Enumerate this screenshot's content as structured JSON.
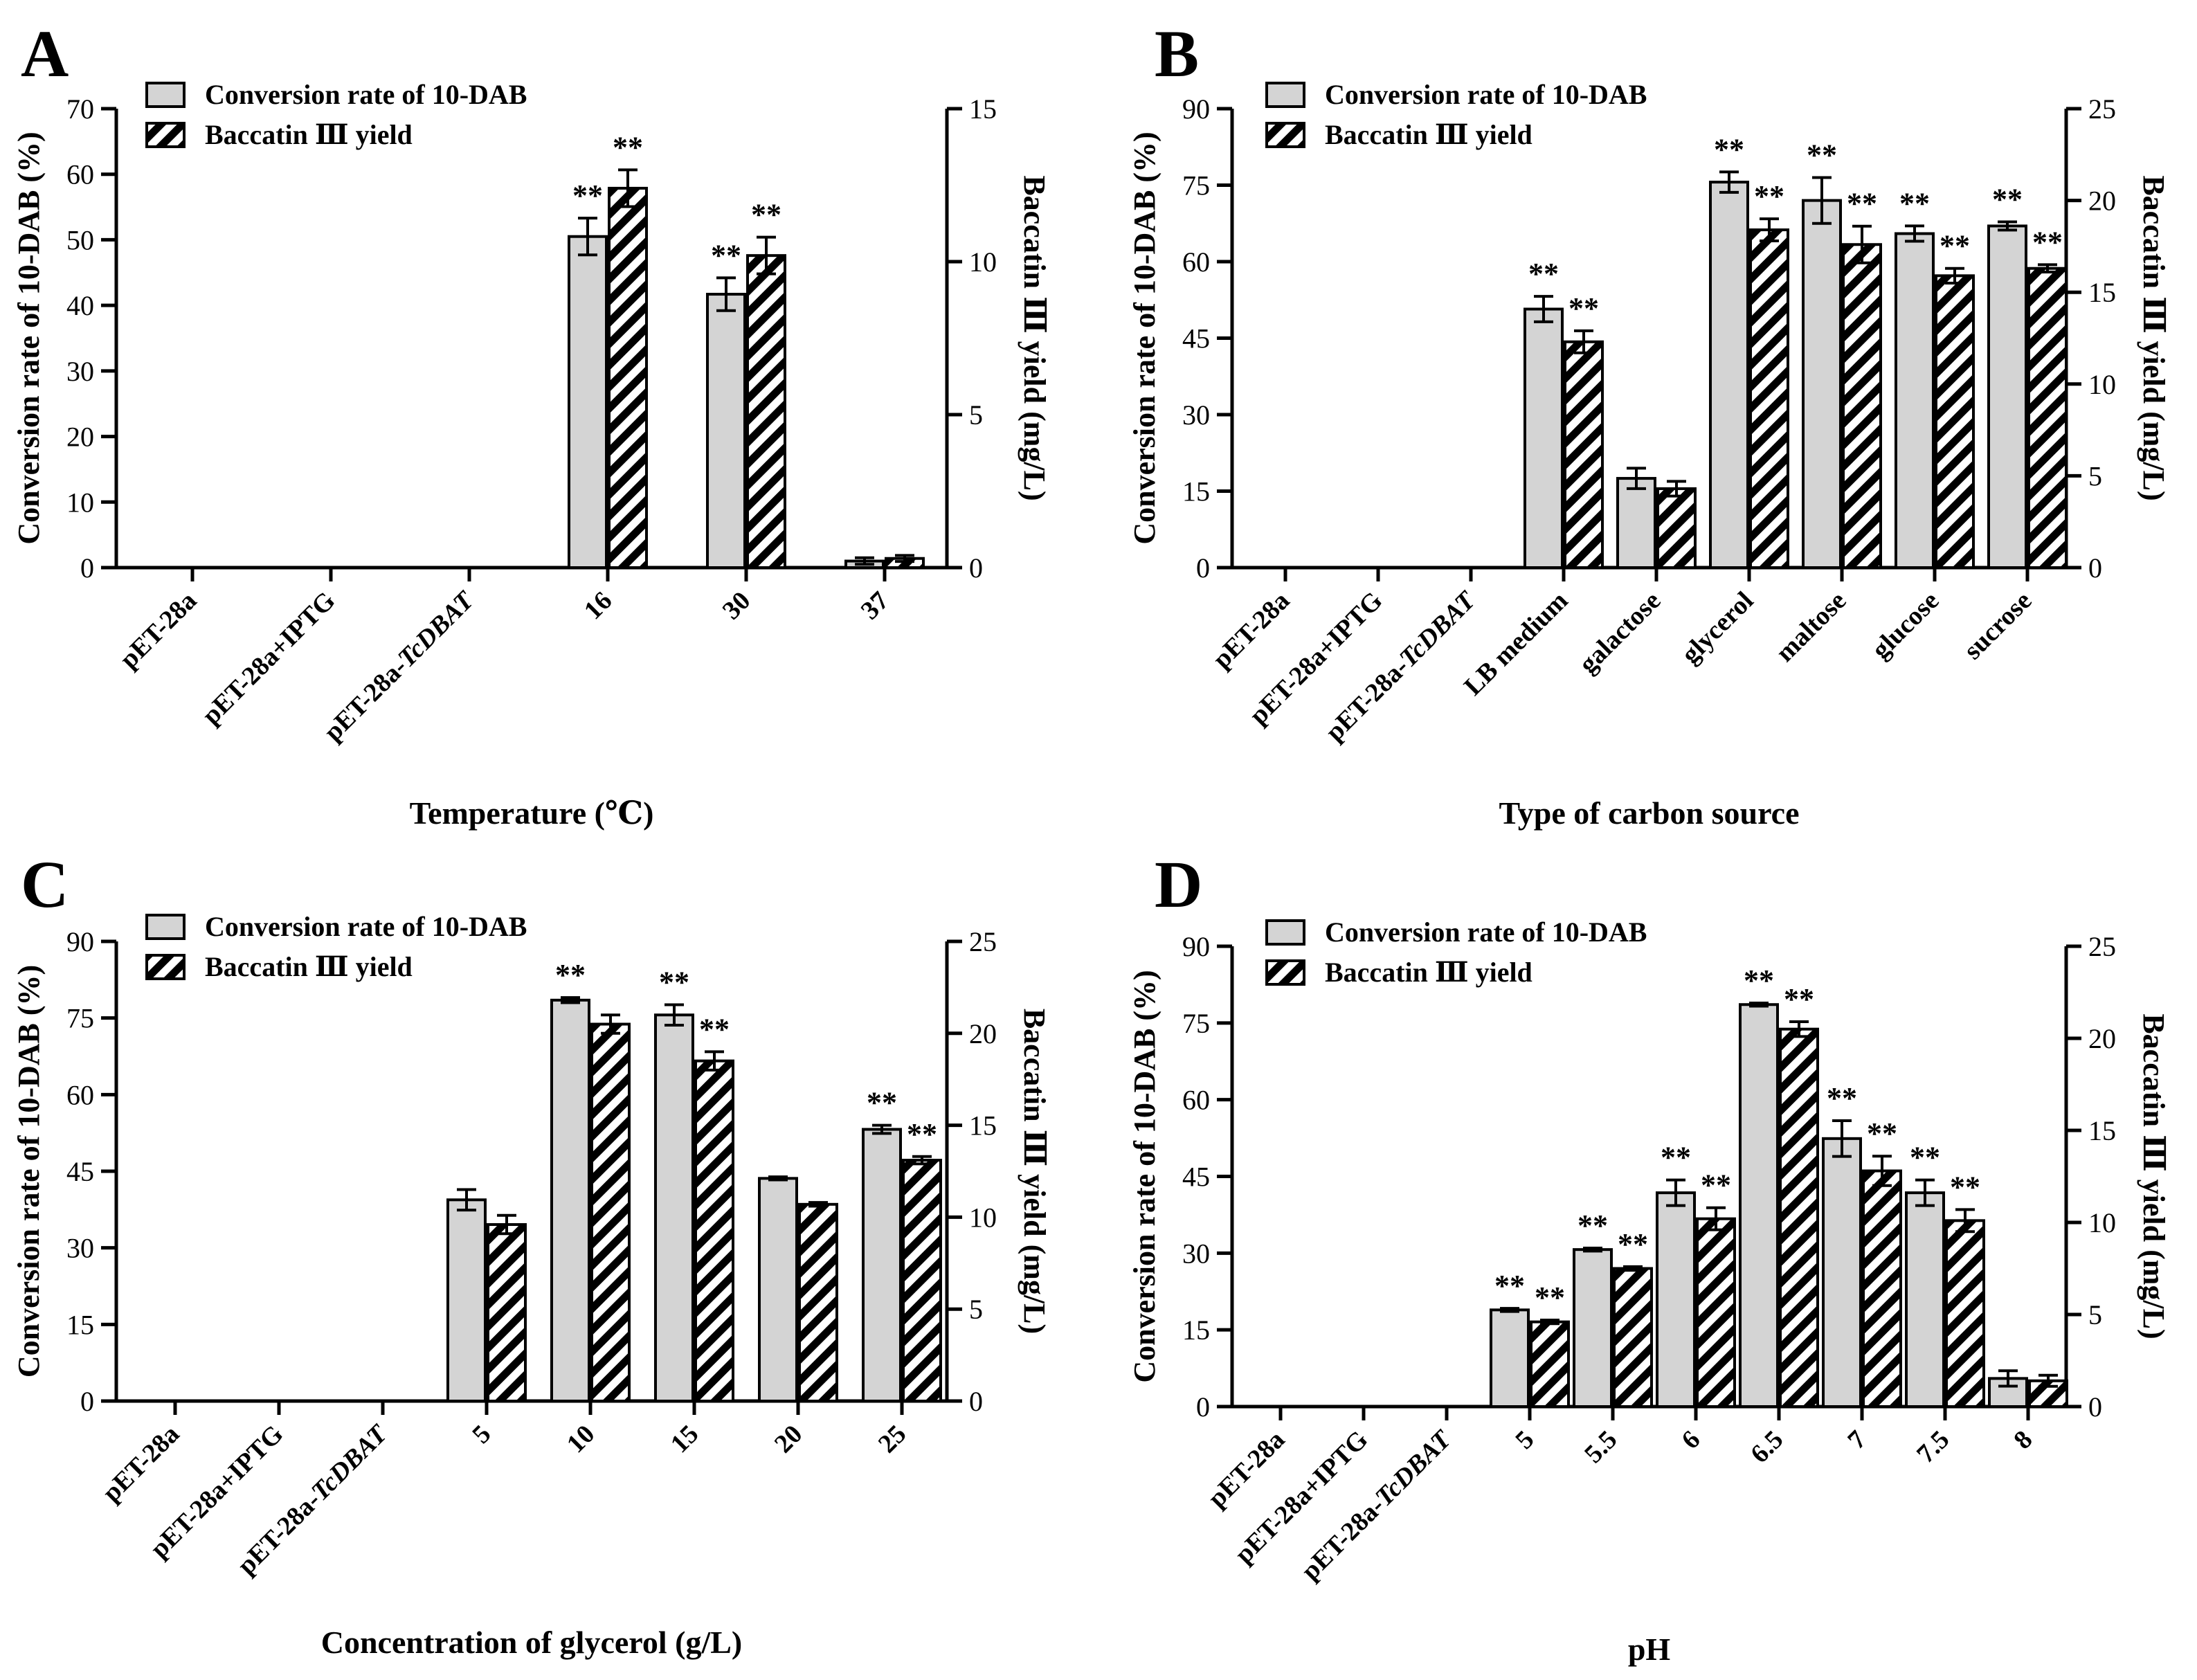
{
  "chart_data": [
    {
      "type": "bar",
      "panel_label": "A",
      "xlabel": "Temperature (℃)",
      "ylabel": "Conversion rate of 10-DAB (%)",
      "y2label": "Baccatin Ⅲ yield (mg/L)",
      "ylim": [
        0,
        70
      ],
      "yticks": [
        "0",
        "10",
        "20",
        "30",
        "40",
        "50",
        "60",
        "70"
      ],
      "y2lim": [
        0,
        15
      ],
      "y2ticks": [
        "0",
        "5",
        "10",
        "15"
      ],
      "legend_position": "top-left",
      "categories": [
        "pET-28a",
        "pET-28a+IPTG",
        "pET-28a-TcDBAT",
        "16",
        "30",
        "37"
      ],
      "category_italic": [
        "",
        "",
        "TcDBAT",
        "",
        "",
        ""
      ],
      "series": [
        {
          "name": "Conversion rate of 10-DAB",
          "axis": "left",
          "fill": "gray",
          "values": [
            0,
            0,
            0,
            50.5,
            41.7,
            1.0
          ],
          "errors": [
            0,
            0,
            0,
            2.8,
            2.5,
            0.5
          ],
          "significance": [
            "",
            "",
            "",
            "**",
            "**",
            ""
          ]
        },
        {
          "name": "Baccatin Ⅲ yield",
          "axis": "right",
          "fill": "hatched",
          "values": [
            0,
            0,
            0,
            12.4,
            10.2,
            0.3
          ],
          "errors": [
            0,
            0,
            0,
            0.6,
            0.6,
            0.1
          ],
          "significance": [
            "",
            "",
            "",
            "**",
            "**",
            ""
          ]
        }
      ]
    },
    {
      "type": "bar",
      "panel_label": "B",
      "xlabel": "Type of carbon source",
      "ylabel": "Conversion rate of 10-DAB (%)",
      "y2label": "Baccatin Ⅲ yield (mg/L)",
      "ylim": [
        0,
        90
      ],
      "yticks": [
        "0",
        "15",
        "30",
        "45",
        "60",
        "75",
        "90"
      ],
      "y2lim": [
        0,
        25
      ],
      "y2ticks": [
        "0",
        "5",
        "10",
        "15",
        "20",
        "25"
      ],
      "legend_position": "top-left",
      "categories": [
        "pET-28a",
        "pET-28a+IPTG",
        "pET-28a-TcDBAT",
        "LB medium",
        "galactose",
        "glycerol",
        "maltose",
        "glucose",
        "sucrose"
      ],
      "category_italic": [
        "",
        "",
        "TcDBAT",
        "",
        "",
        "",
        "",
        "",
        ""
      ],
      "series": [
        {
          "name": "Conversion rate of 10-DAB",
          "axis": "left",
          "fill": "gray",
          "values": [
            0,
            0,
            0,
            50.7,
            17.5,
            75.6,
            72.0,
            65.5,
            67.0
          ],
          "errors": [
            0,
            0,
            0,
            2.5,
            2.0,
            2.0,
            4.5,
            1.5,
            0.8
          ],
          "significance": [
            "",
            "",
            "",
            "**",
            "",
            "**",
            "**",
            "**",
            "**"
          ]
        },
        {
          "name": "Baccatin Ⅲ yield",
          "axis": "right",
          "fill": "hatched",
          "values": [
            0,
            0,
            0,
            12.3,
            4.3,
            18.4,
            17.6,
            15.9,
            16.3
          ],
          "errors": [
            0,
            0,
            0,
            0.6,
            0.4,
            0.6,
            1.0,
            0.4,
            0.2
          ],
          "significance": [
            "",
            "",
            "",
            "**",
            "",
            "**",
            "**",
            "**",
            "**"
          ]
        }
      ]
    },
    {
      "type": "bar",
      "panel_label": "C",
      "xlabel": "Concentration of glycerol (g/L)",
      "ylabel": "Conversion rate of 10-DAB (%)",
      "y2label": "Baccatin Ⅲ yield (mg/L)",
      "ylim": [
        0,
        90
      ],
      "yticks": [
        "0",
        "15",
        "30",
        "45",
        "60",
        "75",
        "90"
      ],
      "y2lim": [
        0,
        25
      ],
      "y2ticks": [
        "0",
        "5",
        "10",
        "15",
        "20",
        "25"
      ],
      "legend_position": "top-left",
      "categories": [
        "pET-28a",
        "pET-28a+IPTG",
        "pET-28a-TcDBAT",
        "5",
        "10",
        "15",
        "20",
        "25"
      ],
      "category_italic": [
        "",
        "",
        "TcDBAT",
        "",
        "",
        "",
        "",
        ""
      ],
      "series": [
        {
          "name": "Conversion rate of 10-DAB",
          "axis": "left",
          "fill": "gray",
          "values": [
            0,
            0,
            0,
            39.4,
            78.5,
            75.6,
            43.6,
            53.2
          ],
          "errors": [
            0,
            0,
            0,
            2.0,
            0.5,
            2.0,
            0.3,
            0.8
          ],
          "significance": [
            "",
            "",
            "",
            "",
            "**",
            "**",
            "",
            "**"
          ]
        },
        {
          "name": "Baccatin Ⅲ yield",
          "axis": "right",
          "fill": "hatched",
          "values": [
            0,
            0,
            0,
            9.6,
            20.5,
            18.5,
            10.7,
            13.1
          ],
          "errors": [
            0,
            0,
            0,
            0.5,
            0.5,
            0.5,
            0.1,
            0.2
          ],
          "significance": [
            "",
            "",
            "",
            "",
            "",
            "**",
            "",
            "**"
          ]
        }
      ]
    },
    {
      "type": "bar",
      "panel_label": "D",
      "xlabel": "pH",
      "ylabel": "Conversion rate of 10-DAB (%)",
      "y2label": "Baccatin Ⅲ yield (mg/L)",
      "ylim": [
        0,
        90
      ],
      "yticks": [
        "0",
        "15",
        "30",
        "45",
        "60",
        "75",
        "90"
      ],
      "y2lim": [
        0,
        25
      ],
      "y2ticks": [
        "0",
        "5",
        "10",
        "15",
        "20",
        "25"
      ],
      "legend_position": "top-left",
      "categories": [
        "pET-28a",
        "pET-28a+IPTG",
        "pET-28a-TcDBAT",
        "5",
        "5.5",
        "6",
        "6.5",
        "7",
        "7.5",
        "8"
      ],
      "category_italic": [
        "",
        "",
        "TcDBAT",
        "",
        "",
        "",
        "",
        "",
        "",
        ""
      ],
      "series": [
        {
          "name": "Conversion rate of 10-DAB",
          "axis": "left",
          "fill": "gray",
          "values": [
            0,
            0,
            0,
            18.9,
            30.7,
            41.8,
            78.6,
            52.4,
            41.8,
            5.5
          ],
          "errors": [
            0,
            0,
            0,
            0.3,
            0.3,
            2.5,
            0.3,
            3.5,
            2.5,
            1.5
          ],
          "significance": [
            "",
            "",
            "",
            "**",
            "**",
            "**",
            "**",
            "**",
            "**",
            ""
          ]
        },
        {
          "name": "Baccatin Ⅲ yield",
          "axis": "right",
          "fill": "hatched",
          "values": [
            0,
            0,
            0,
            4.6,
            7.5,
            10.2,
            20.5,
            12.8,
            10.1,
            1.4
          ],
          "errors": [
            0,
            0,
            0,
            0.1,
            0.1,
            0.6,
            0.4,
            0.8,
            0.6,
            0.3
          ],
          "significance": [
            "",
            "",
            "",
            "**",
            "**",
            "**",
            "**",
            "**",
            "**",
            ""
          ]
        }
      ]
    }
  ]
}
